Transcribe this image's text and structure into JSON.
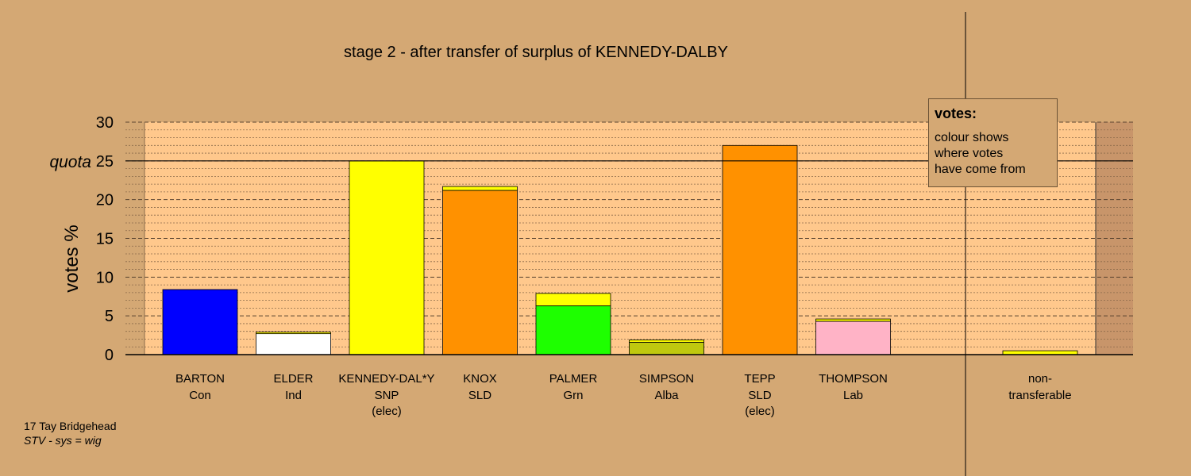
{
  "chart_data": {
    "type": "bar",
    "title": "stage 2 - after transfer of surplus of KENNEDY-DALBY",
    "ylabel": "votes %",
    "ylim": [
      0,
      30
    ],
    "yticks": [
      0,
      5,
      10,
      15,
      20,
      25,
      30
    ],
    "quota": {
      "label": "quota",
      "value": 25
    },
    "stacked": true,
    "grid": true,
    "candidates": [
      {
        "name": "BARTON",
        "party": "Con",
        "status": "",
        "segments": [
          {
            "value": 8.4,
            "color": "#0000FF"
          }
        ]
      },
      {
        "name": "ELDER",
        "party": "Ind",
        "status": "",
        "segments": [
          {
            "value": 2.7,
            "color": "#FFFFFF"
          },
          {
            "value": 0.2,
            "color": "#FFFF00"
          }
        ]
      },
      {
        "name": "KENNEDY-DAL*Y",
        "party": "SNP",
        "status": "(elec)",
        "segments": [
          {
            "value": 25.0,
            "color": "#FFFF00"
          }
        ]
      },
      {
        "name": "KNOX",
        "party": "SLD",
        "status": "",
        "segments": [
          {
            "value": 21.2,
            "color": "#FF9100"
          },
          {
            "value": 0.5,
            "color": "#FFFF00"
          }
        ]
      },
      {
        "name": "PALMER",
        "party": "Grn",
        "status": "",
        "segments": [
          {
            "value": 6.3,
            "color": "#1EFF00"
          },
          {
            "value": 1.6,
            "color": "#FFFF00"
          }
        ]
      },
      {
        "name": "SIMPSON",
        "party": "Alba",
        "status": "",
        "segments": [
          {
            "value": 1.6,
            "color": "#BFC80F"
          },
          {
            "value": 0.3,
            "color": "#FFFF00"
          }
        ]
      },
      {
        "name": "TEPP",
        "party": "SLD",
        "status": "(elec)",
        "segments": [
          {
            "value": 27.0,
            "color": "#FF9100"
          }
        ]
      },
      {
        "name": "THOMPSON",
        "party": "Lab",
        "status": "",
        "segments": [
          {
            "value": 4.3,
            "color": "#FFB3C6"
          },
          {
            "value": 0.3,
            "color": "#FFFF00"
          }
        ]
      }
    ],
    "nontransferable": {
      "label": "non-",
      "label2": "transferable",
      "value": 0.5,
      "color": "#FFFF00"
    },
    "colors": {
      "background": "#D4A874",
      "plot": "#FFC88C",
      "grid": "#8a6a4a"
    }
  },
  "legend": {
    "title": "votes:",
    "body": "colour shows\nwhere votes\nhave come from"
  },
  "footer": {
    "constituency": "17 Tay Bridgehead",
    "system": "STV - sys = wig"
  }
}
